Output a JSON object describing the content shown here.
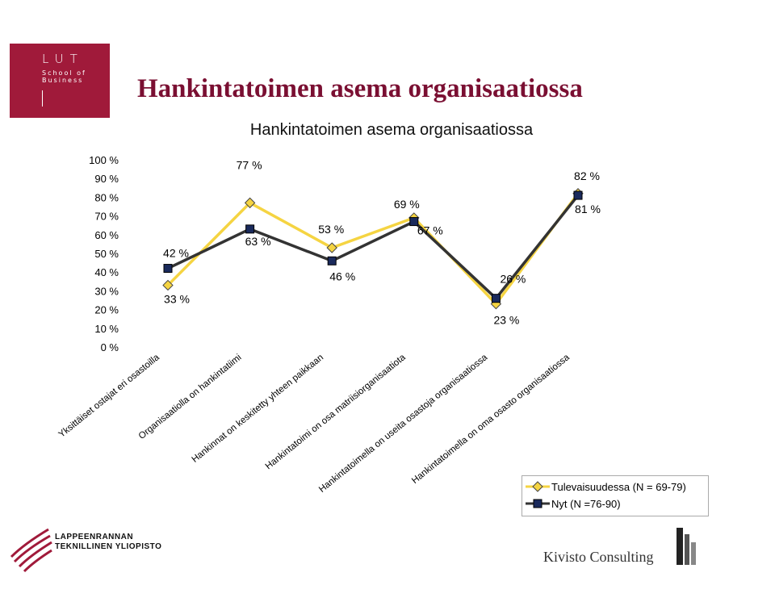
{
  "slide": {
    "title": "Hankintatoimen asema organisaatiossa"
  },
  "logos": {
    "lut": "LUT",
    "school": "School of Business",
    "university_line1": "LAPPEENRANNAN",
    "university_line2": "TEKNILLINEN YLIOPISTO",
    "kivisto": "Kivisto Consulting"
  },
  "chart_data": {
    "type": "line",
    "title": "Hankintatoimen asema organisaatiossa",
    "categories": [
      "Yksittäiset ostajat eri osastoilla",
      "Organisaatiolla on hankintatiimi",
      "Hankinnat on keskitetty yhteen paikkaan",
      "Hankintatoimi on osa matriisiorganisaatiota",
      "Hankintatoimella on useita osastoja organisaatiossa",
      "Hankintatoimella on oma osasto organisaatiossa"
    ],
    "y_ticks": [
      "0 %",
      "10 %",
      "20 %",
      "30 %",
      "40 %",
      "50 %",
      "60 %",
      "70 %",
      "80 %",
      "90 %",
      "100 %"
    ],
    "ylim": [
      0,
      100
    ],
    "grid": false,
    "legend_position": "bottom-right",
    "series": [
      {
        "name": "Tulevaisuudessa (N = 69-79)",
        "values": [
          33,
          77,
          53,
          69,
          23,
          82
        ],
        "labels": [
          "33 %",
          "77 %",
          "53 %",
          "69 %",
          "23 %",
          "82 %"
        ],
        "color": "#f5d442",
        "marker": "diamond"
      },
      {
        "name": "Nyt (N =76-90)",
        "values": [
          42,
          63,
          46,
          67,
          26,
          81
        ],
        "labels": [
          "42 %",
          "63 %",
          "46 %",
          "67 %",
          "26 %",
          "81 %"
        ],
        "color": "#333333",
        "marker": "square"
      }
    ]
  }
}
